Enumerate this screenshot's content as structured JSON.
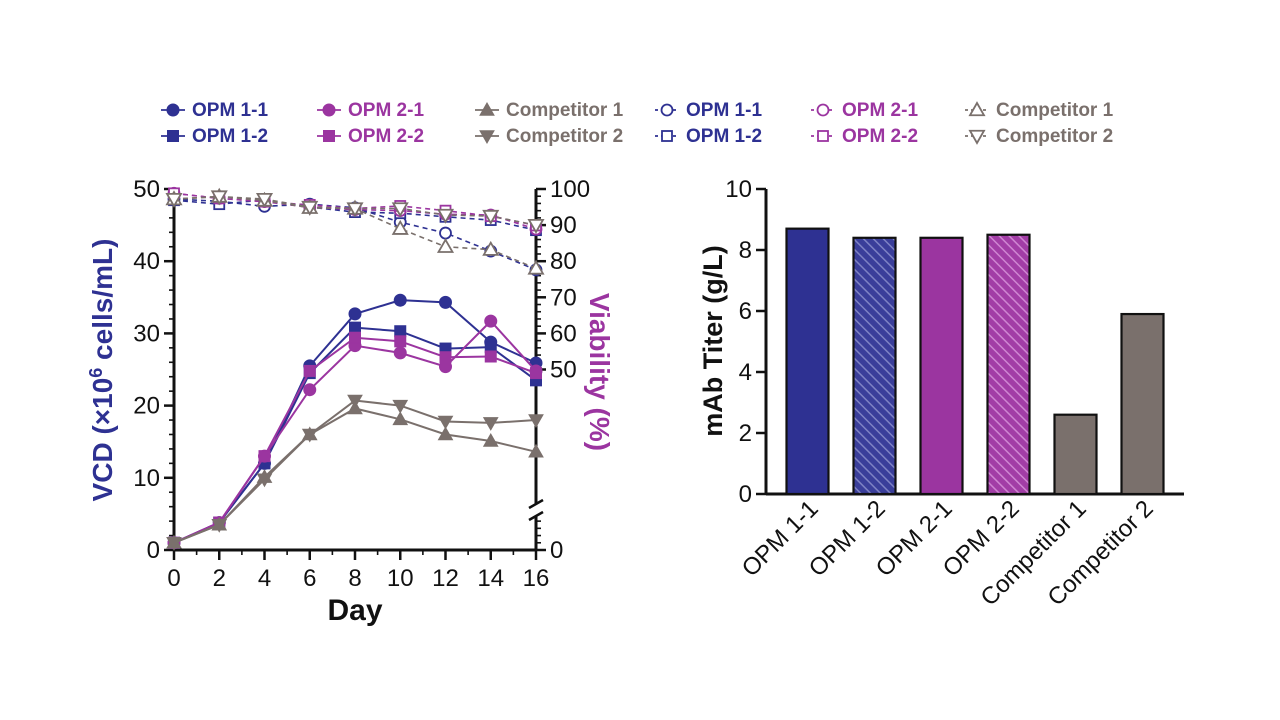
{
  "colors": {
    "opm1": "#2E3192",
    "opm2": "#9B35A0",
    "comp": "#7A706C",
    "axis": "#111111"
  },
  "legend": [
    {
      "label": "OPM 1-1",
      "series": "opm1_1",
      "kind": "vcd"
    },
    {
      "label": "OPM 1-2",
      "series": "opm1_2",
      "kind": "vcd"
    },
    {
      "label": "OPM 2-1",
      "series": "opm2_1",
      "kind": "vcd"
    },
    {
      "label": "OPM 2-2",
      "series": "opm2_2",
      "kind": "vcd"
    },
    {
      "label": "Competitor 1",
      "series": "comp1",
      "kind": "vcd"
    },
    {
      "label": "Competitor 2",
      "series": "comp2",
      "kind": "vcd"
    },
    {
      "label": "OPM 1-1",
      "series": "opm1_1",
      "kind": "viability"
    },
    {
      "label": "OPM 1-2",
      "series": "opm1_2",
      "kind": "viability"
    },
    {
      "label": "OPM 2-1",
      "series": "opm2_1",
      "kind": "viability"
    },
    {
      "label": "OPM 2-2",
      "series": "opm2_2",
      "kind": "viability"
    },
    {
      "label": "Competitor 1",
      "series": "comp1",
      "kind": "viability"
    },
    {
      "label": "Competitor 2",
      "series": "comp2",
      "kind": "viability"
    }
  ],
  "chart_data": [
    {
      "type": "line",
      "title": "",
      "xlabel": "Day",
      "ylabel": "VCD (×10⁶ cells/mL)",
      "ylabel_right": "Viability (%)",
      "x": [
        0,
        2,
        4,
        6,
        8,
        10,
        12,
        14,
        16
      ],
      "xticks": [
        0,
        2,
        4,
        6,
        8,
        10,
        12,
        14,
        16
      ],
      "xlim": [
        0,
        16
      ],
      "ylim": [
        0,
        50
      ],
      "yticks": [
        0,
        10,
        20,
        30,
        40,
        50
      ],
      "ylim_right": [
        0,
        100
      ],
      "yticks_right": [
        0,
        50,
        60,
        70,
        80,
        90,
        100
      ],
      "right_axis_break": "between 0 and 50",
      "series": [
        {
          "id": "opm1_1",
          "name": "OPM 1-1",
          "axis": "left",
          "marker": "circle-filled",
          "line": "solid",
          "color": "opm1",
          "values": [
            1.0,
            3.8,
            12.0,
            25.5,
            32.7,
            34.6,
            34.3,
            28.8,
            25.9
          ]
        },
        {
          "id": "opm1_2",
          "name": "OPM 1-2",
          "axis": "left",
          "marker": "square-filled",
          "line": "solid",
          "color": "opm1",
          "values": [
            1.0,
            3.8,
            12.0,
            24.5,
            30.8,
            30.3,
            27.9,
            28.1,
            23.5
          ]
        },
        {
          "id": "opm2_1",
          "name": "OPM 2-1",
          "axis": "left",
          "marker": "circle-filled",
          "line": "solid",
          "color": "opm2",
          "values": [
            1.0,
            3.8,
            13.0,
            22.2,
            28.3,
            27.3,
            25.4,
            31.7,
            24.8
          ]
        },
        {
          "id": "opm2_2",
          "name": "OPM 2-2",
          "axis": "left",
          "marker": "square-filled",
          "line": "solid",
          "color": "opm2",
          "values": [
            1.0,
            3.8,
            13.0,
            24.8,
            29.4,
            28.9,
            26.7,
            26.8,
            24.5
          ]
        },
        {
          "id": "comp1",
          "name": "Competitor 1",
          "axis": "left",
          "marker": "triangle-up-filled",
          "line": "solid",
          "color": "comp",
          "values": [
            1.0,
            3.5,
            10.1,
            16.0,
            19.6,
            18.1,
            16.0,
            15.1,
            13.6
          ]
        },
        {
          "id": "comp2",
          "name": "Competitor 2",
          "axis": "left",
          "marker": "triangle-down-filled",
          "line": "solid",
          "color": "comp",
          "values": [
            1.0,
            3.5,
            9.8,
            16.0,
            20.7,
            20.0,
            17.8,
            17.6,
            18.0
          ]
        },
        {
          "id": "opm1_1v",
          "name": "OPM 1-1",
          "axis": "right",
          "marker": "circle-open",
          "line": "dashed",
          "color": "opm1",
          "values": [
            97.2,
            96.6,
            95.2,
            95.8,
            94.8,
            90.8,
            87.8,
            82.8,
            77.6
          ]
        },
        {
          "id": "opm1_2v",
          "name": "OPM 1-2",
          "axis": "right",
          "marker": "square-open",
          "line": "dashed",
          "color": "opm1",
          "values": [
            96.9,
            95.8,
            97.0,
            95.0,
            93.6,
            93.3,
            92.3,
            91.4,
            88.6
          ]
        },
        {
          "id": "opm2_1v",
          "name": "OPM 2-1",
          "axis": "right",
          "marker": "circle-open",
          "line": "dashed",
          "color": "opm2",
          "values": [
            98.8,
            97.4,
            96.5,
            94.9,
            94.3,
            94.0,
            93.0,
            92.8,
            88.9
          ]
        },
        {
          "id": "opm2_2v",
          "name": "OPM 2-2",
          "axis": "right",
          "marker": "square-open",
          "line": "dashed",
          "color": "opm2",
          "values": [
            98.8,
            97.4,
            96.5,
            95.6,
            94.6,
            95.3,
            94.0,
            92.5,
            89.9
          ]
        },
        {
          "id": "comp1v",
          "name": "Competitor 1",
          "axis": "right",
          "marker": "triangle-up-open",
          "line": "dashed",
          "color": "comp",
          "values": [
            97.2,
            97.9,
            96.8,
            94.8,
            94.6,
            89.0,
            84.0,
            83.2,
            78.0
          ]
        },
        {
          "id": "comp2v",
          "name": "Competitor 2",
          "axis": "right",
          "marker": "triangle-down-open",
          "line": "dashed",
          "color": "comp",
          "values": [
            97.2,
            97.9,
            97.2,
            95.0,
            94.6,
            94.6,
            92.8,
            92.5,
            90.0
          ]
        }
      ]
    },
    {
      "type": "bar",
      "title": "",
      "xlabel": "",
      "ylabel": "mAb Titer (g/L)",
      "ylim": [
        0,
        10
      ],
      "yticks": [
        0,
        2,
        4,
        6,
        8,
        10
      ],
      "categories": [
        "OPM 1-1",
        "OPM 1-2",
        "OPM 2-1",
        "OPM 2-2",
        "Competitor 1",
        "Competitor 2"
      ],
      "values": [
        8.7,
        8.4,
        8.4,
        8.5,
        2.6,
        5.9
      ],
      "bar_colors": [
        "opm1",
        "opm1",
        "opm2",
        "opm2",
        "comp",
        "comp"
      ],
      "bar_hatched": [
        false,
        true,
        false,
        true,
        false,
        false
      ]
    }
  ]
}
